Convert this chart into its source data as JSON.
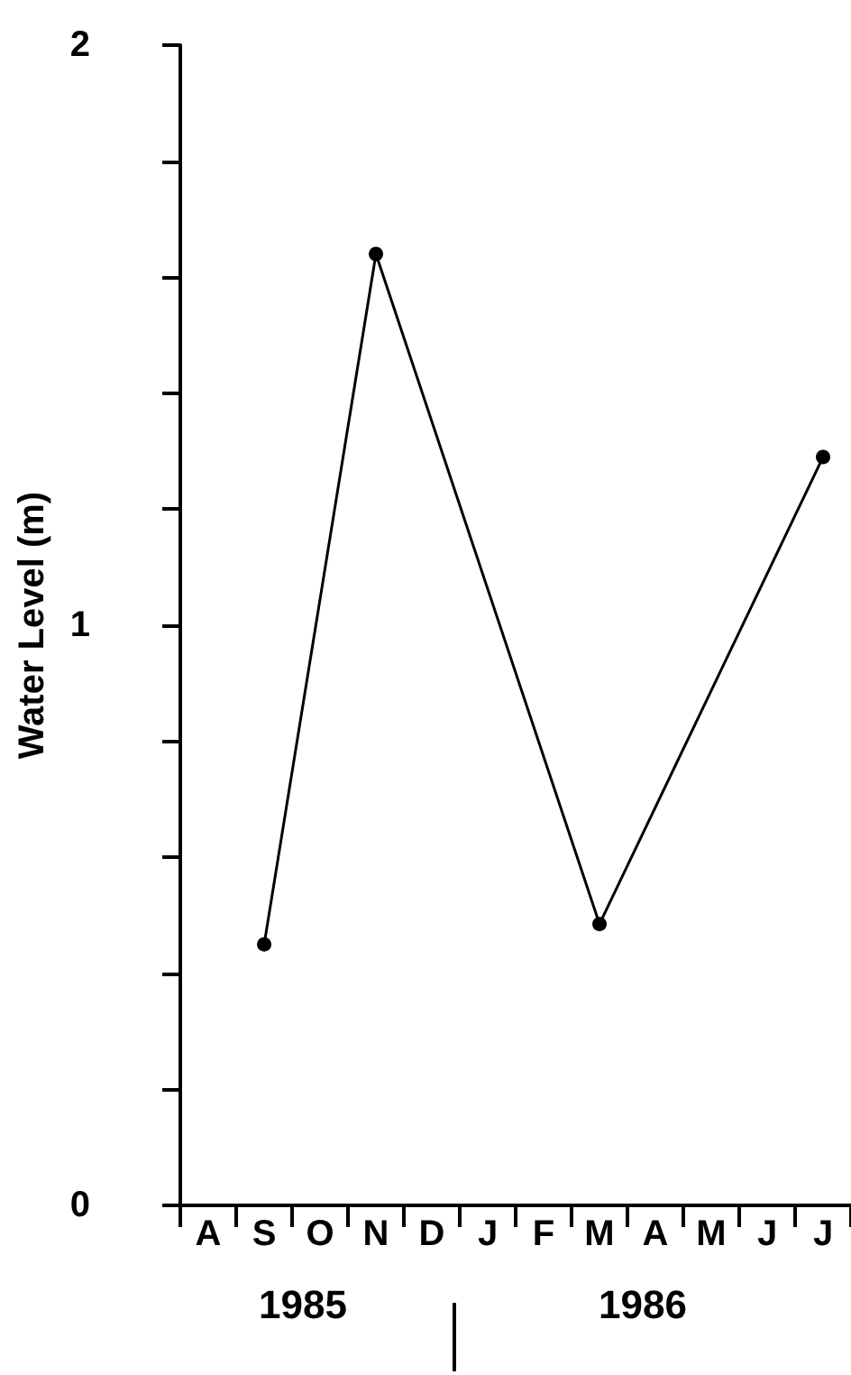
{
  "chart_data": {
    "type": "line",
    "ylabel": "Water Level (m)",
    "categories": [
      "A",
      "S",
      "O",
      "N",
      "D",
      "J",
      "F",
      "M",
      "A",
      "M",
      "J",
      "J"
    ],
    "values": [
      null,
      0.45,
      null,
      1.64,
      null,
      null,
      null,
      0.485,
      null,
      null,
      null,
      1.29
    ],
    "color": "#000000",
    "marker": "circle",
    "line_style": "solid",
    "grid": false,
    "ylim": [
      0,
      2
    ],
    "yticks": [
      0,
      {
        "value": 0.2,
        "label": null
      },
      {
        "value": 0.4,
        "label": null
      },
      {
        "value": 0.6,
        "label": null
      },
      {
        "value": 0.8,
        "label": null
      },
      1,
      {
        "value": 1.2,
        "label": null
      },
      {
        "value": 1.4,
        "label": null
      },
      {
        "value": 1.6,
        "label": null
      },
      {
        "value": 1.8,
        "label": null
      },
      2
    ],
    "annotations": [
      "1985",
      "1986"
    ]
  }
}
